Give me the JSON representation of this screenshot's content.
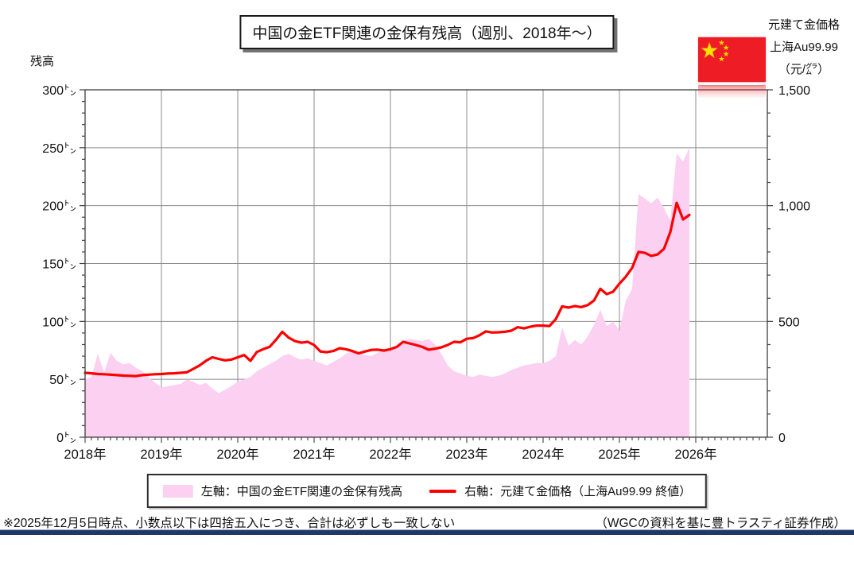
{
  "title": "中国の金ETF関連の金保有残高（週別、2018年～）",
  "left_axis": {
    "label": "残高",
    "tick_labels": [
      "300㌧",
      "250㌧",
      "200㌧",
      "150㌧",
      "100㌧",
      "50㌧",
      "0㌧"
    ],
    "min": 0,
    "max": 300,
    "major_step": 50,
    "minor_step": 10,
    "unit": "トン"
  },
  "right_axis": {
    "header_lines": [
      "元建て金価格",
      "上海Au99.99",
      "（元/㌘）"
    ],
    "tick_labels": [
      "1,500",
      "1,000",
      "500",
      "0"
    ],
    "min": 0,
    "max": 1500,
    "major_step": 500,
    "minor_step": 100,
    "unit": "元/グラム"
  },
  "x_axis": {
    "year_labels": [
      "2018年",
      "2019年",
      "2020年",
      "2021年",
      "2022年",
      "2023年",
      "2024年",
      "2025年",
      "2026年"
    ]
  },
  "flag": {
    "name": "china-flag",
    "field_color": "#EE1C25",
    "star_color": "#FFDE00"
  },
  "legend": {
    "area_label": "左軸：中国の金ETF関連の金保有残高",
    "line_label": "右軸：元建て金価格（上海Au99.99 終値）"
  },
  "footnotes": {
    "left": "※2025年12月5日時点、小数点以下は四捨五入につき、合計は必ずしも一致しない",
    "right": "（WGCの資料を基に豊トラスティ証券作成）"
  },
  "colors": {
    "area_pink": "#FBD0F0",
    "line_red": "#FF0000",
    "grid": "#8C8C8C",
    "frame": "#3F3F3F",
    "navy_rule": "#1F3864"
  },
  "chart_data": {
    "type": "combo",
    "title": "中国の金ETF関連の金保有残高（週別、2018年～）",
    "frequency": "monthly",
    "start": "2018-01",
    "end": "2025-12",
    "as_of": "2025年12月5日",
    "x_tick_labels": [
      "2018年",
      "2019年",
      "2020年",
      "2021年",
      "2022年",
      "2023年",
      "2024年",
      "2025年",
      "2026年"
    ],
    "left_ylim": [
      0,
      300
    ],
    "right_ylim": [
      0,
      1500
    ],
    "grid": true,
    "legend_position": "bottom",
    "series": [
      {
        "name": "中国の金ETF関連の金保有残高",
        "axis": "left",
        "type": "area",
        "unit": "トン",
        "color": "#FBD0F0",
        "values": [
          50,
          52,
          72,
          56,
          73,
          66,
          63,
          64,
          60,
          57,
          52,
          47,
          43,
          44,
          45,
          46,
          50,
          48,
          45,
          47,
          42,
          38,
          41,
          44,
          48,
          50,
          52,
          57,
          60,
          63,
          66,
          70,
          72,
          69,
          67,
          68,
          66,
          64,
          62,
          65,
          68,
          72,
          74,
          73,
          71,
          70,
          73,
          75,
          74,
          78,
          83,
          85,
          84,
          83,
          85,
          80,
          72,
          62,
          57,
          55,
          53,
          52,
          54,
          53,
          52,
          53,
          55,
          58,
          60,
          62,
          63,
          64,
          64,
          66,
          70,
          95,
          79,
          84,
          80,
          87,
          97,
          110,
          96,
          100,
          92,
          118,
          128,
          210,
          206,
          202,
          207,
          198,
          187,
          245,
          238,
          250
        ]
      },
      {
        "name": "元建て金価格（上海Au99.99 終値）",
        "axis": "right",
        "type": "line",
        "unit": "元/グラム",
        "color": "#FF0000",
        "values": [
          278,
          276,
          273,
          272,
          270,
          268,
          266,
          265,
          264,
          268,
          270,
          272,
          273,
          275,
          276,
          278,
          280,
          295,
          310,
          330,
          345,
          338,
          332,
          335,
          345,
          355,
          330,
          368,
          380,
          390,
          420,
          455,
          430,
          415,
          408,
          412,
          398,
          370,
          367,
          372,
          384,
          380,
          372,
          362,
          370,
          377,
          378,
          374,
          380,
          390,
          412,
          405,
          398,
          390,
          378,
          382,
          388,
          398,
          412,
          410,
          425,
          428,
          440,
          457,
          452,
          453,
          455,
          460,
          475,
          470,
          477,
          482,
          482,
          480,
          510,
          565,
          560,
          566,
          562,
          570,
          590,
          641,
          618,
          628,
          663,
          693,
          731,
          800,
          796,
          783,
          789,
          813,
          886,
          1012,
          940,
          960
        ]
      }
    ]
  }
}
